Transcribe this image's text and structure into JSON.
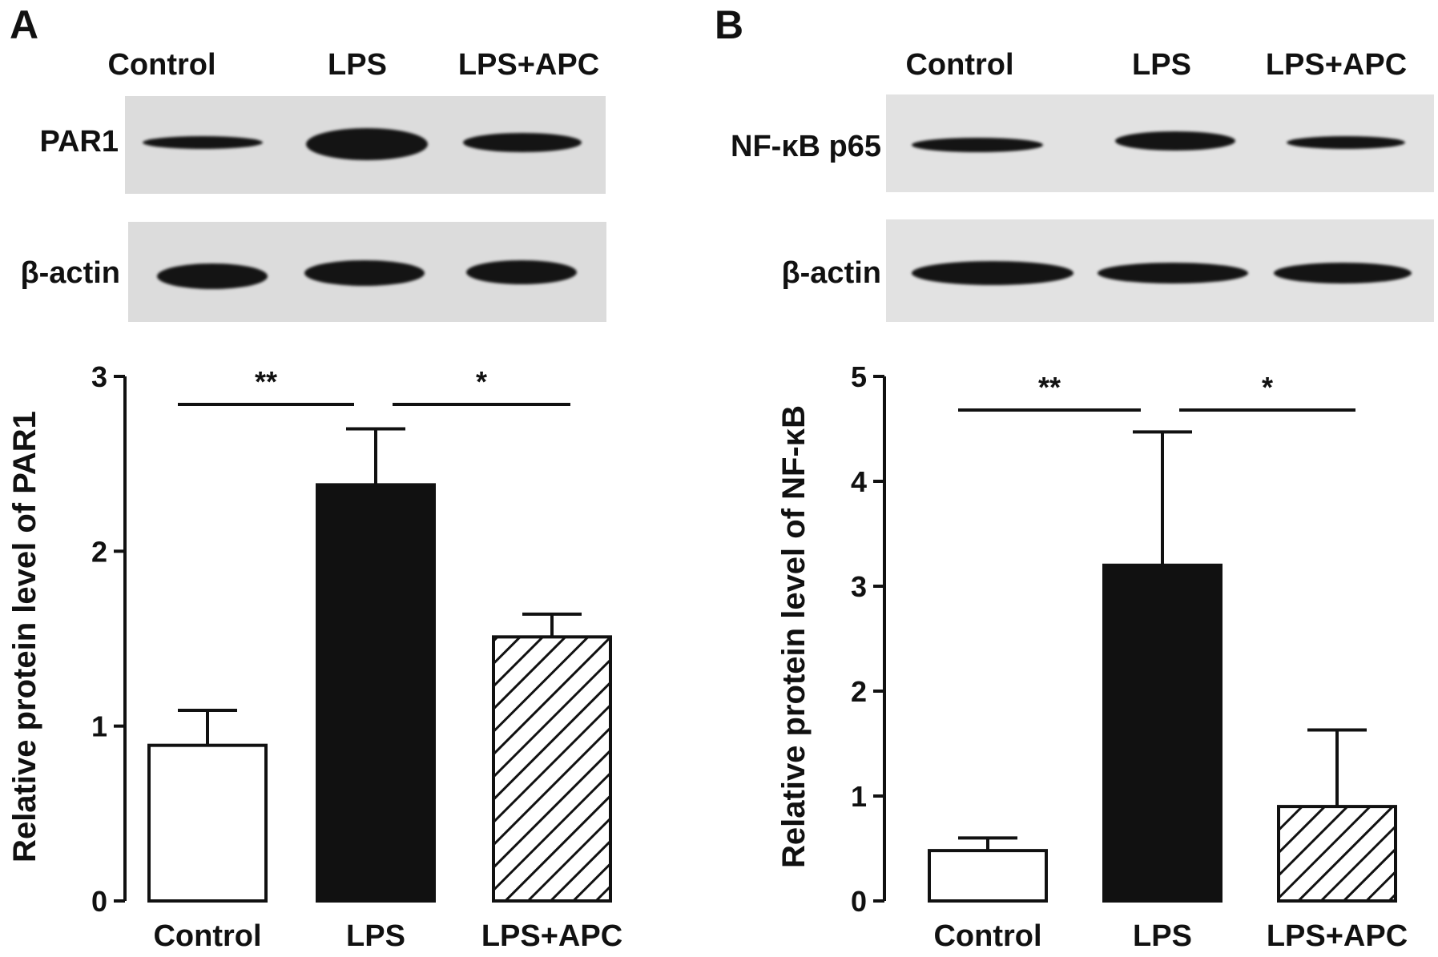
{
  "panels": [
    {
      "letter": "A",
      "lanes": [
        "Control",
        "LPS",
        "LPS+APC"
      ],
      "blot_rows": [
        "PAR1",
        "β-actin"
      ]
    },
    {
      "letter": "B",
      "lanes": [
        "Control",
        "LPS",
        "LPS+APC"
      ],
      "blot_rows": [
        "NF-κB p65",
        "β-actin"
      ]
    }
  ],
  "chart_data": [
    {
      "type": "bar",
      "categories": [
        "Control",
        "LPS",
        "LPS+APC"
      ],
      "values": [
        0.89,
        2.38,
        1.51
      ],
      "errors": [
        0.2,
        0.32,
        0.13
      ],
      "fills": [
        "white",
        "black",
        "hatched"
      ],
      "ylabel": "Relative protein level of PAR1",
      "xlabel": "",
      "ylim": [
        0,
        3
      ],
      "yticks": [
        0,
        1,
        2,
        3
      ],
      "significance": [
        {
          "from": "Control",
          "to": "LPS",
          "label": "**"
        },
        {
          "from": "LPS",
          "to": "LPS+APC",
          "label": "*"
        }
      ]
    },
    {
      "type": "bar",
      "categories": [
        "Control",
        "LPS",
        "LPS+APC"
      ],
      "values": [
        0.48,
        3.2,
        0.9
      ],
      "errors": [
        0.12,
        1.27,
        0.73
      ],
      "fills": [
        "white",
        "black",
        "hatched"
      ],
      "ylabel": "Relative protein level of NF-κB",
      "xlabel": "",
      "ylim": [
        0,
        5
      ],
      "yticks": [
        0,
        1,
        2,
        3,
        4,
        5
      ],
      "significance": [
        {
          "from": "Control",
          "to": "LPS",
          "label": "**"
        },
        {
          "from": "LPS",
          "to": "LPS+APC",
          "label": "*"
        }
      ]
    }
  ]
}
